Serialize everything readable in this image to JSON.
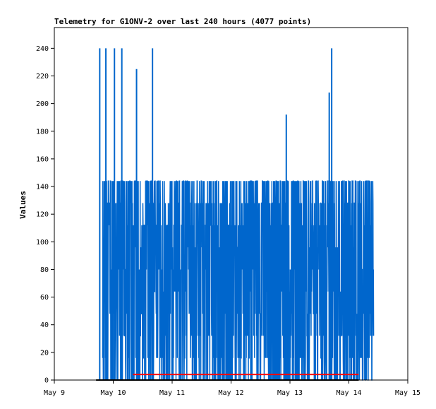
{
  "chart_data": {
    "type": "line",
    "title": "Telemetry for G1ONV-2 over last 240 hours (4077 points)",
    "xlabel": "",
    "ylabel": "Values",
    "x_ticks": [
      "May 9",
      "May 10",
      "May 11",
      "May 12",
      "May 13",
      "May 14",
      "May 15"
    ],
    "x_range": [
      "May 9",
      "May 15"
    ],
    "ylim": [
      0,
      255
    ],
    "y_ticks": [
      0,
      20,
      40,
      60,
      80,
      100,
      120,
      140,
      160,
      180,
      200,
      220,
      240
    ],
    "grid": false,
    "colors": {
      "series_blue": "#0066cc",
      "series_red": "#ff0000",
      "series_black": "#000000"
    },
    "series": [
      {
        "color": "#0066cc",
        "x_start": "May 9 17:00",
        "x_end": "May 14 04:00",
        "data_day_range": [
          0.82,
          5.42
        ],
        "value_range": [
          0,
          240
        ],
        "typical_range": [
          0,
          145
        ],
        "spikes": [
          {
            "x": "May 9 18:30",
            "y": 240
          },
          {
            "x": "May 9 21:00",
            "y": 240
          },
          {
            "x": "May 10 00:30",
            "y": 240
          },
          {
            "x": "May 10 03:30",
            "y": 240
          },
          {
            "x": "May 10 09:30",
            "y": 225
          },
          {
            "x": "May 10 16:00",
            "y": 240
          },
          {
            "x": "May 12 22:30",
            "y": 192
          },
          {
            "x": "May 13 16:00",
            "y": 208
          },
          {
            "x": "May 13 17:00",
            "y": 240
          }
        ]
      },
      {
        "color": "#ff0000",
        "x_start": "May 10 08:00",
        "x_end": "May 14 04:00",
        "value": 4
      },
      {
        "color": "#000000",
        "x_start": "May 9 17:00",
        "x_end": "May 14 04:00",
        "value": 0
      }
    ]
  }
}
